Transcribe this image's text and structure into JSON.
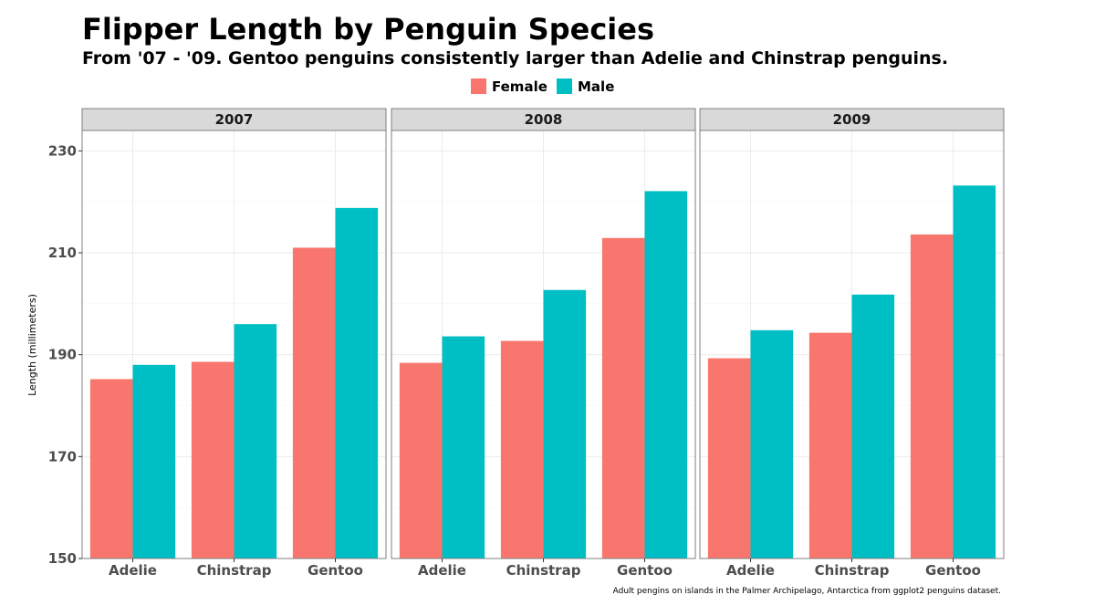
{
  "chart_data": {
    "type": "bar",
    "title": "Flipper Length by Penguin Species",
    "subtitle": "From '07 - '09. Gentoo penguins consistently larger than Adelie and Chinstrap penguins.",
    "ylabel": "Length (millimeters)",
    "caption": "Adult pengins on islands in the Palmer Archipelago, Antarctica from ggplot2 penguins dataset.",
    "ylim": [
      150,
      234
    ],
    "yticks": [
      150,
      170,
      190,
      210,
      230
    ],
    "categories": [
      "Adelie",
      "Chinstrap",
      "Gentoo"
    ],
    "legend": {
      "placement": "top",
      "entries": [
        "Female",
        "Male"
      ]
    },
    "colors": {
      "Female": "#F8766D",
      "Male": "#00BFC4"
    },
    "grid": true,
    "facets": [
      {
        "label": "2007",
        "series": [
          {
            "name": "Female",
            "values": [
              185.2,
              188.6,
              211.0
            ]
          },
          {
            "name": "Male",
            "values": [
              188.0,
              196.0,
              218.8
            ]
          }
        ]
      },
      {
        "label": "2008",
        "series": [
          {
            "name": "Female",
            "values": [
              188.4,
              192.7,
              212.9
            ]
          },
          {
            "name": "Male",
            "values": [
              193.6,
              202.7,
              222.1
            ]
          }
        ]
      },
      {
        "label": "2009",
        "series": [
          {
            "name": "Female",
            "values": [
              189.3,
              194.3,
              213.6
            ]
          },
          {
            "name": "Male",
            "values": [
              194.8,
              201.8,
              223.2
            ]
          }
        ]
      }
    ]
  }
}
